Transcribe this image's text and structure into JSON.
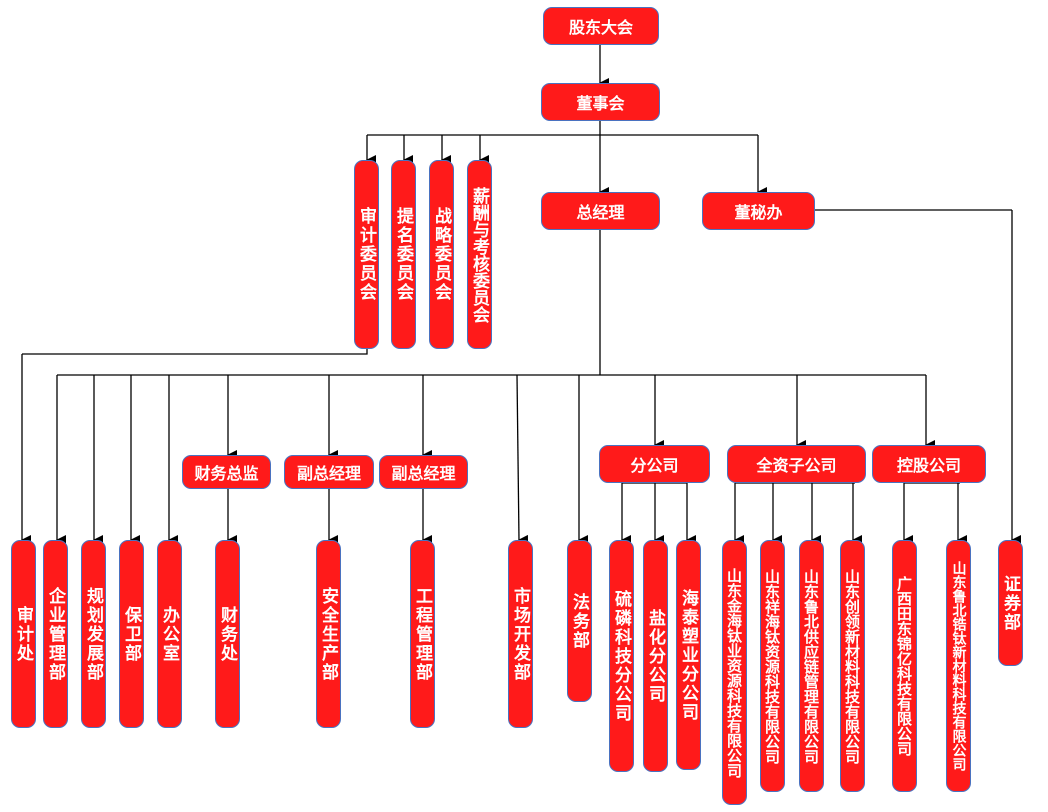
{
  "colors": {
    "box_fill": "#ff1a1a",
    "box_border": "#4a72c0",
    "text": "#ffffff",
    "line": "#000000"
  },
  "nodes": {
    "shareholders": "股东大会",
    "board": "董事会",
    "audit_committee": "审计委员会",
    "nomination_committee": "提名委员会",
    "strategy_committee": "战略委员会",
    "compensation_committee": "薪酬与考核委员会",
    "general_manager": "总经理",
    "board_secretary_office": "董秘办",
    "cfo": "财务总监",
    "deputy_gm_1": "副总经理",
    "deputy_gm_2": "副总经理",
    "branches": "分公司",
    "wholly_owned": "全资子公司",
    "holding": "控股公司",
    "audit_dept": "审计处",
    "enterprise_mgmt": "企业管理部",
    "planning": "规划发展部",
    "security": "保卫部",
    "office": "办公室",
    "finance": "财务处",
    "safety": "安全生产部",
    "engineering": "工程管理部",
    "marketing": "市场开发部",
    "legal": "法务部",
    "branch_1": "硫磷科技分公司",
    "branch_2": "盐化分公司",
    "branch_3": "海泰塑业分公司",
    "sub_1": "山东金海钛业资源科技有限公司",
    "sub_2": "山东祥海钛资源科技有限公司",
    "sub_3": "山东鲁北供应链管理有限公司",
    "sub_4": "山东创领新材料科技有限公司",
    "hold_1": "广西田东锦亿科技有限公司",
    "hold_2": "山东鲁北锆钛新材料科技有限公司",
    "securities": "证券部"
  }
}
